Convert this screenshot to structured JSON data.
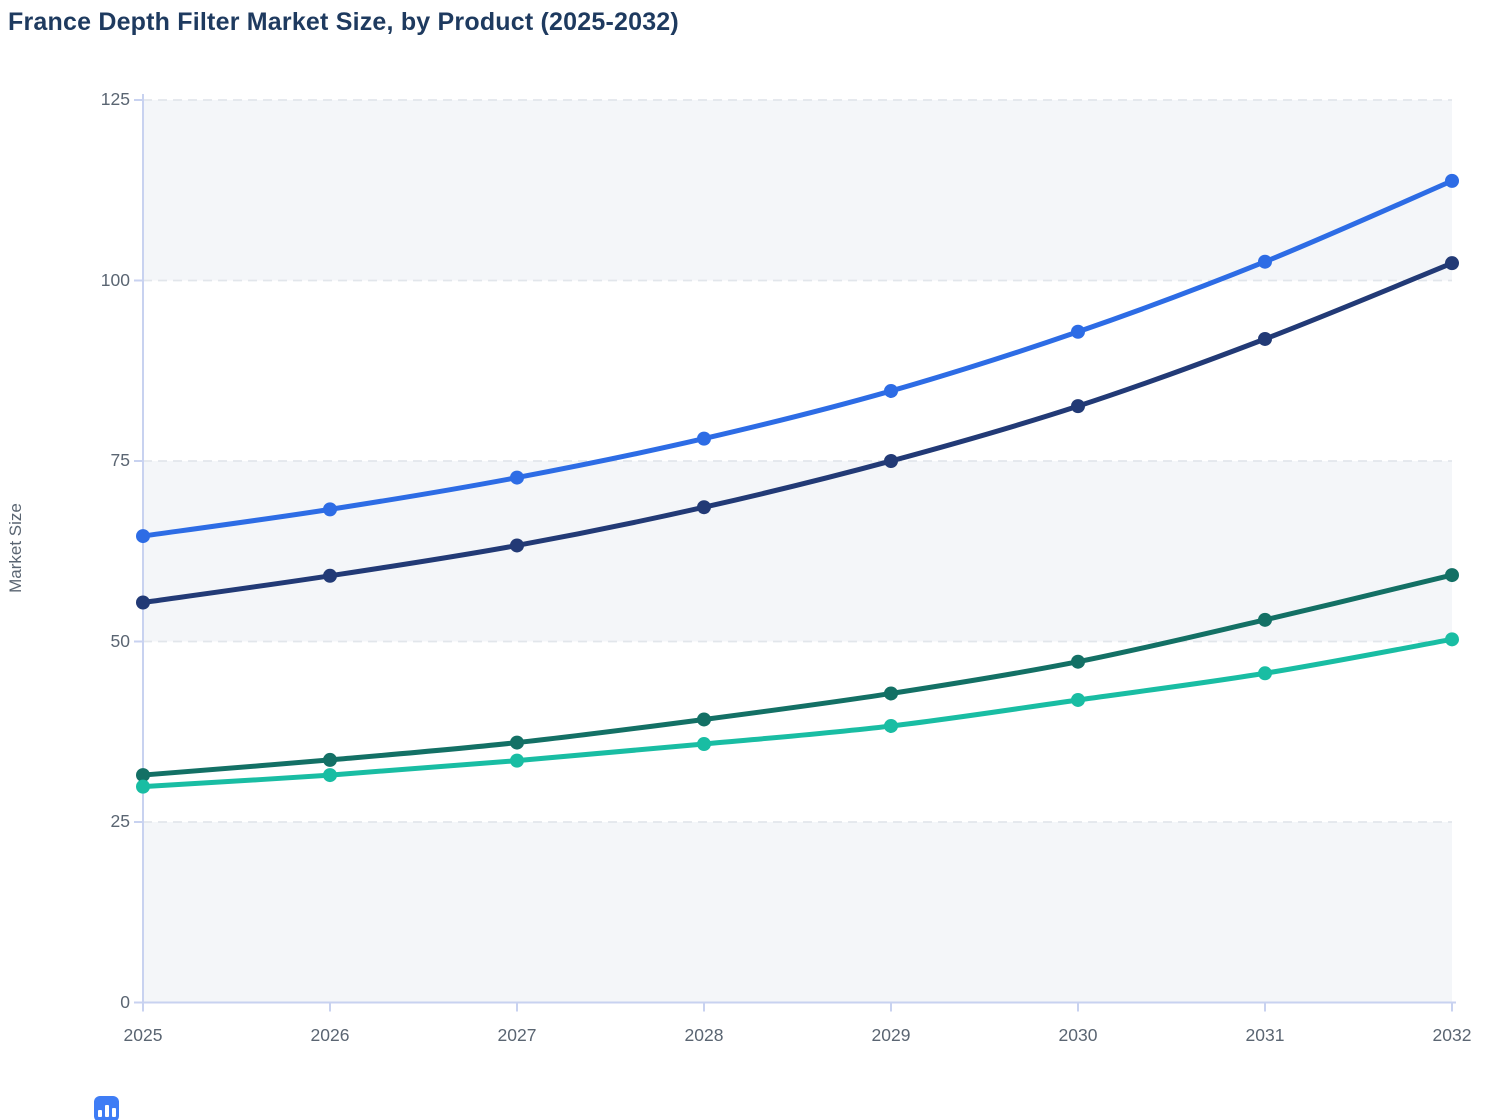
{
  "title": "France Depth Filter Market Size, by Product (2025-2032)",
  "y_axis": {
    "label": "Market Size",
    "ticks": [
      0,
      25,
      50,
      75,
      100,
      125
    ],
    "min": 0,
    "max": 125
  },
  "x_axis": {
    "categories": [
      "2025",
      "2026",
      "2027",
      "2028",
      "2029",
      "2030",
      "2031",
      "2032"
    ]
  },
  "chart_data": {
    "type": "line",
    "title": "France Depth Filter Market Size, by Product (2025-2032)",
    "xlabel": "",
    "ylabel": "Market Size",
    "ylim": [
      0,
      125
    ],
    "x": [
      2025,
      2026,
      2027,
      2028,
      2029,
      2030,
      2031,
      2032
    ],
    "series": [
      {
        "name": "blue",
        "color": "#2d6ce5",
        "values": [
          64.6,
          68.3,
          72.7,
          78.1,
          84.7,
          92.9,
          102.6,
          113.8
        ]
      },
      {
        "name": "navy",
        "color": "#223a76",
        "values": [
          55.4,
          59.1,
          63.3,
          68.6,
          75.0,
          82.6,
          91.9,
          102.4
        ]
      },
      {
        "name": "dark-green",
        "color": "#137065",
        "values": [
          31.5,
          33.6,
          36.0,
          39.2,
          42.8,
          47.2,
          53.0,
          59.2
        ]
      },
      {
        "name": "teal",
        "color": "#19bda3",
        "values": [
          29.9,
          31.5,
          33.5,
          35.8,
          38.3,
          41.9,
          45.6,
          50.3
        ]
      }
    ],
    "grid": "horizontal-dashed",
    "legend": "none",
    "band_shading": "alternating"
  },
  "styles": {
    "title_color": "#1e3a5f",
    "tick_text_color": "#5a6572",
    "axis_line_color": "#c8d2f0",
    "grid_color": "#e2e6eb",
    "band_color": "#f4f6f9",
    "badge_color": "#3f7df5"
  }
}
